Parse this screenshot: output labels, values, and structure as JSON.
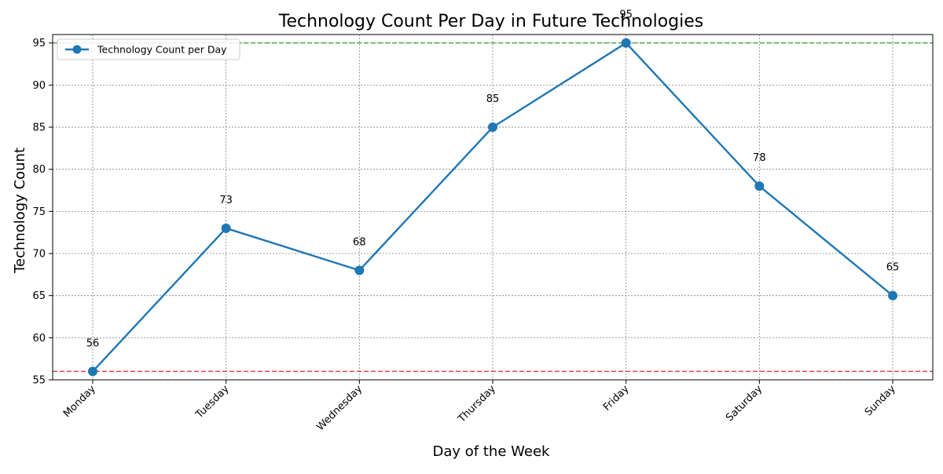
{
  "chart_data": {
    "type": "line",
    "title": "Technology Count Per Day in Future Technologies",
    "xlabel": "Day of the Week",
    "ylabel": "Technology Count",
    "categories": [
      "Monday",
      "Tuesday",
      "Wednesday",
      "Thursday",
      "Friday",
      "Saturday",
      "Sunday"
    ],
    "series": [
      {
        "name": "Technology Count per Day",
        "values": [
          56,
          73,
          68,
          85,
          95,
          78,
          65
        ],
        "color": "#1f77b4"
      }
    ],
    "ylim": [
      55,
      96
    ],
    "yticks": [
      55,
      60,
      65,
      70,
      75,
      80,
      85,
      90,
      95
    ],
    "reference_lines": [
      {
        "value": 95,
        "color": "#2ca02c",
        "style": "dashed"
      },
      {
        "value": 56,
        "color": "#d62728",
        "style": "dashed"
      }
    ],
    "grid": true,
    "legend_position": "top-left",
    "data_labels": true
  }
}
